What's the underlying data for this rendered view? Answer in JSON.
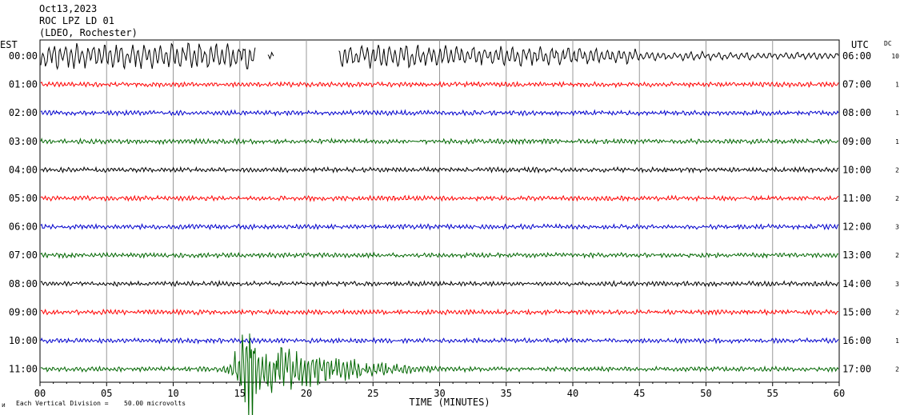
{
  "header": {
    "date": "Oct13,2023",
    "station": "ROC LPZ LD 01",
    "network": "(LDEO, Rochester)"
  },
  "chart_data": {
    "type": "line",
    "title": "ROC LPZ LD 01",
    "left_axis_label": "EST",
    "right_axis_label": "UTC",
    "dc_label": "DC",
    "xlabel": "TIME (MINUTES)",
    "x_ticks": [
      "00",
      "05",
      "10",
      "15",
      "20",
      "25",
      "30",
      "35",
      "40",
      "45",
      "50",
      "55",
      "60"
    ],
    "xlim": [
      0,
      60
    ],
    "grid": true,
    "scale_note": "Each Vertical Division =",
    "scale_value": "50.00 microvolts",
    "corner_mark": "ᴎ",
    "colors": {
      "black": "#000000",
      "red": "#ff0000",
      "blue": "#0000cc",
      "green": "#006600",
      "grid": "#999999"
    },
    "rows": [
      {
        "est": "00:00",
        "utc": "06:00",
        "dc": "10",
        "color": "black",
        "trace": "clipped-microseism"
      },
      {
        "est": "01:00",
        "utc": "07:00",
        "dc": "1",
        "color": "red",
        "trace": "noise"
      },
      {
        "est": "02:00",
        "utc": "08:00",
        "dc": "1",
        "color": "blue",
        "trace": "noise"
      },
      {
        "est": "03:00",
        "utc": "09:00",
        "dc": "1",
        "color": "green",
        "trace": "noise"
      },
      {
        "est": "04:00",
        "utc": "10:00",
        "dc": "2",
        "color": "black",
        "trace": "noise"
      },
      {
        "est": "05:00",
        "utc": "11:00",
        "dc": "2",
        "color": "red",
        "trace": "noise"
      },
      {
        "est": "06:00",
        "utc": "12:00",
        "dc": "3",
        "color": "blue",
        "trace": "noise"
      },
      {
        "est": "07:00",
        "utc": "13:00",
        "dc": "2",
        "color": "green",
        "trace": "noise"
      },
      {
        "est": "08:00",
        "utc": "14:00",
        "dc": "3",
        "color": "black",
        "trace": "noise"
      },
      {
        "est": "09:00",
        "utc": "15:00",
        "dc": "2",
        "color": "red",
        "trace": "noise"
      },
      {
        "est": "10:00",
        "utc": "16:00",
        "dc": "1",
        "color": "blue",
        "trace": "noise"
      },
      {
        "est": "11:00",
        "utc": "17:00",
        "dc": "2",
        "color": "green",
        "trace": "earthquake"
      }
    ]
  }
}
